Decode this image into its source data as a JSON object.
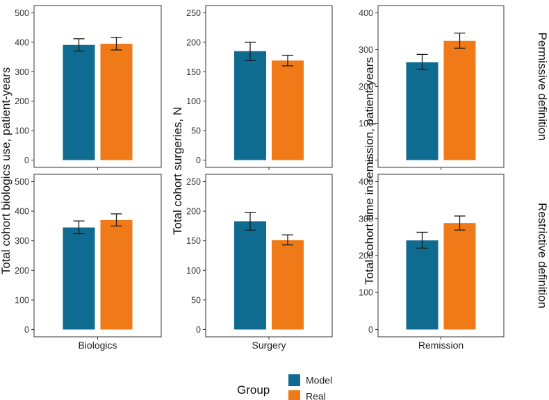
{
  "chart_data": {
    "type": "bar",
    "layout": "facet-grid-2x3",
    "colors": {
      "Model": "#0f6b8f",
      "Real": "#ef7a17"
    },
    "legend": {
      "title": "Group",
      "entries": [
        "Model",
        "Real"
      ],
      "position": "bottom"
    },
    "rows": [
      "Permissive definition",
      "Restrictive definition"
    ],
    "columns": [
      {
        "xlabel": "Biologics",
        "ylabel": "Total cohort biologics use, patient-years",
        "ylim": [
          0,
          500
        ],
        "ticks": [
          0,
          100,
          200,
          300,
          400,
          500
        ]
      },
      {
        "xlabel": "Surgery",
        "ylabel": "Total cohort surgeries, N",
        "ylim": [
          0,
          250
        ],
        "ticks": [
          0,
          50,
          100,
          150,
          200,
          250
        ]
      },
      {
        "xlabel": "Remission",
        "ylabel": "Total cohort time in remission, patient-years",
        "ylim": [
          0,
          400
        ],
        "ticks": [
          0,
          100,
          200,
          300,
          400
        ]
      }
    ],
    "panels": [
      {
        "row": 0,
        "col": 0,
        "series": [
          {
            "name": "Model",
            "value": 391,
            "err_low": 370,
            "err_high": 412
          },
          {
            "name": "Real",
            "value": 395,
            "err_low": 374,
            "err_high": 417
          }
        ]
      },
      {
        "row": 0,
        "col": 1,
        "series": [
          {
            "name": "Model",
            "value": 185,
            "err_low": 169,
            "err_high": 200
          },
          {
            "name": "Real",
            "value": 169,
            "err_low": 160,
            "err_high": 178
          }
        ]
      },
      {
        "row": 0,
        "col": 2,
        "series": [
          {
            "name": "Model",
            "value": 266,
            "err_low": 246,
            "err_high": 287
          },
          {
            "name": "Real",
            "value": 324,
            "err_low": 304,
            "err_high": 345
          }
        ]
      },
      {
        "row": 1,
        "col": 0,
        "series": [
          {
            "name": "Model",
            "value": 345,
            "err_low": 324,
            "err_high": 367
          },
          {
            "name": "Real",
            "value": 370,
            "err_low": 350,
            "err_high": 391
          }
        ]
      },
      {
        "row": 1,
        "col": 1,
        "series": [
          {
            "name": "Model",
            "value": 183,
            "err_low": 168,
            "err_high": 198
          },
          {
            "name": "Real",
            "value": 151,
            "err_low": 143,
            "err_high": 160
          }
        ]
      },
      {
        "row": 1,
        "col": 2,
        "series": [
          {
            "name": "Model",
            "value": 241,
            "err_low": 220,
            "err_high": 263
          },
          {
            "name": "Real",
            "value": 288,
            "err_low": 269,
            "err_high": 307
          }
        ]
      }
    ]
  }
}
